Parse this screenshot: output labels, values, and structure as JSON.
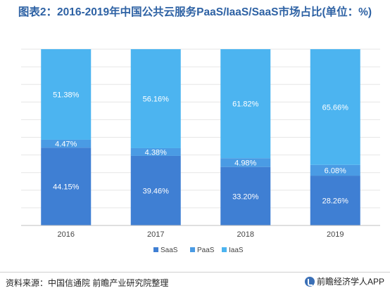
{
  "title": "图表2：2016-2019年中国公共云服务PaaS/IaaS/SaaS市场占比(单位：%)",
  "source": "资料来源：中国信通院 前瞻产业研究院整理",
  "brand": "前瞻经济学人APP",
  "colors": {
    "SaaS": "#3f7fd3",
    "PaaS": "#4a9be4",
    "IaaS": "#4cb4f0"
  },
  "chart_data": {
    "type": "bar",
    "stacked": true,
    "categories": [
      "2016",
      "2017",
      "2018",
      "2019"
    ],
    "series": [
      {
        "name": "SaaS",
        "values": [
          44.15,
          39.46,
          33.2,
          28.26
        ],
        "labels": [
          "44.15%",
          "39.46%",
          "33.20%",
          "28.26%"
        ]
      },
      {
        "name": "PaaS",
        "values": [
          4.47,
          4.38,
          4.98,
          6.08
        ],
        "labels": [
          "4.47%",
          "4.38%",
          "4.98%",
          "6.08%"
        ]
      },
      {
        "name": "IaaS",
        "values": [
          51.38,
          56.16,
          61.82,
          65.66
        ],
        "labels": [
          "51.38%",
          "56.16%",
          "61.82%",
          "65.66%"
        ]
      }
    ],
    "ylim": [
      0,
      100
    ],
    "grid": true,
    "legend": "bottom"
  }
}
